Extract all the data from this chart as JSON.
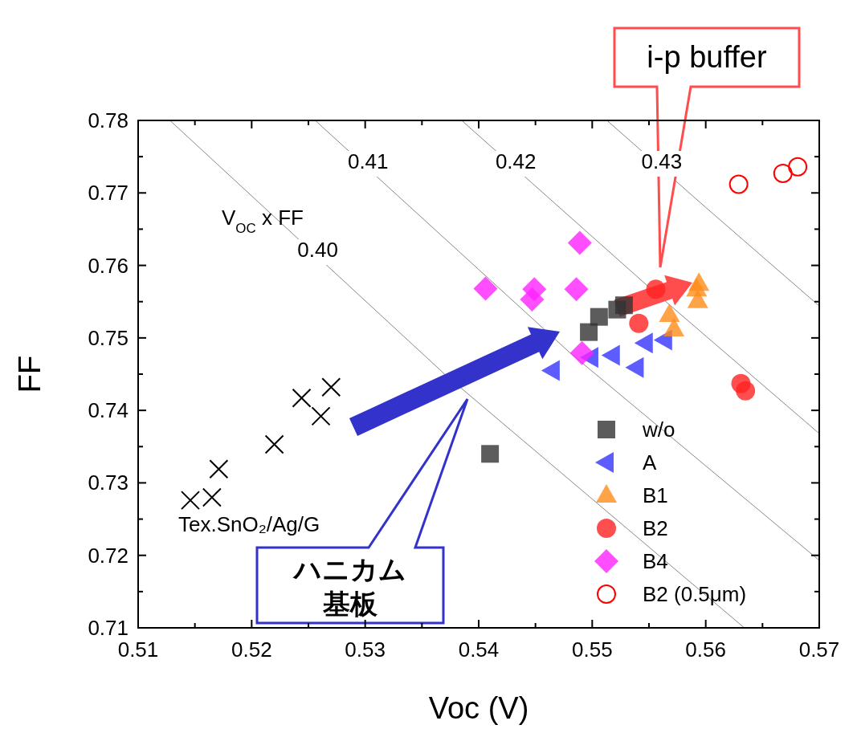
{
  "chart_data": {
    "type": "scatter",
    "xlabel": "Voc (V)",
    "ylabel": "FF",
    "xlim": [
      0.51,
      0.57
    ],
    "xticks": [
      0.51,
      0.52,
      0.53,
      0.54,
      0.55,
      0.56,
      0.57
    ],
    "ylim": [
      0.71,
      0.78
    ],
    "yticks": [
      0.71,
      0.72,
      0.73,
      0.74,
      0.75,
      0.76,
      0.77,
      0.78
    ],
    "grid": false,
    "legend": "bottom right",
    "series": [
      {
        "name": "0.40",
        "type": "line",
        "color": "#888888",
        "line_style": "solid",
        "marker": "none",
        "x": [
          0.5128,
          0.537,
          0.5634
        ],
        "values": [
          0.78,
          0.745,
          0.71
        ]
      },
      {
        "name": "0.41",
        "type": "line",
        "color": "#888888",
        "line_style": "solid",
        "marker": "none",
        "x": [
          0.5256,
          0.548,
          0.57
        ],
        "values": [
          0.78,
          0.748,
          0.7193
        ]
      },
      {
        "name": "0.42",
        "type": "line",
        "color": "#888888",
        "line_style": "solid",
        "marker": "none",
        "x": [
          0.5385,
          0.555,
          0.57
        ],
        "values": [
          0.78,
          0.757,
          0.7368
        ]
      },
      {
        "name": "0.43",
        "type": "line",
        "color": "#888888",
        "line_style": "solid",
        "marker": "none",
        "x": [
          0.5513,
          0.56,
          0.57
        ],
        "values": [
          0.78,
          0.768,
          0.7544
        ]
      },
      {
        "marker": "cross",
        "color": "#000000",
        "x": [
          0.5146,
          0.5165,
          0.5171,
          0.522,
          0.5244,
          0.5261,
          0.527
        ],
        "values": [
          0.7276,
          0.728,
          0.7319,
          0.7353,
          0.7417,
          0.7392,
          0.7432
        ]
      },
      {
        "name": "w/o",
        "marker": "square",
        "color": "#333333",
        "x": [
          0.5497,
          0.5506,
          0.5522,
          0.5528,
          0.541
        ],
        "values": [
          0.7508,
          0.7529,
          0.7539,
          0.7545,
          0.734
        ]
      },
      {
        "name": "A",
        "marker": "triangle-left",
        "color": "#3333ff",
        "x": [
          0.5465,
          0.5499,
          0.5518,
          0.5539,
          0.5547,
          0.5564
        ],
        "values": [
          0.7455,
          0.7473,
          0.7476,
          0.7459,
          0.7493,
          0.7497
        ]
      },
      {
        "name": "B1",
        "marker": "triangle",
        "color": "#ff8c1a",
        "x": [
          0.5594,
          0.5592,
          0.5593,
          0.5568,
          0.5572
        ],
        "values": [
          0.7575,
          0.7567,
          0.7551,
          0.7532,
          0.7512
        ]
      },
      {
        "name": "B2",
        "marker": "circle",
        "color": "#ff2222",
        "x": [
          0.5556,
          0.5541,
          0.5631,
          0.5635
        ],
        "values": [
          0.7567,
          0.752,
          0.7437,
          0.7427
        ]
      },
      {
        "name": "B4",
        "marker": "diamond",
        "color": "#ff22ff",
        "x": [
          0.5489,
          0.5449,
          0.5447,
          0.5486,
          0.5491,
          0.5406
        ],
        "values": [
          0.7631,
          0.7567,
          0.7553,
          0.7567,
          0.7479,
          0.7568
        ]
      },
      {
        "name": "B2 (0.5μm)",
        "marker": "circle-open",
        "color": "#ff0000",
        "x": [
          0.5629,
          0.5668,
          0.5681
        ],
        "values": [
          0.7712,
          0.7727,
          0.7736
        ]
      }
    ],
    "annotations": [
      "V$_{OC}$ x FF",
      "Tex.SnO₂/Ag/G",
      "ハニカム",
      "基板",
      "i-p buffer"
    ]
  }
}
